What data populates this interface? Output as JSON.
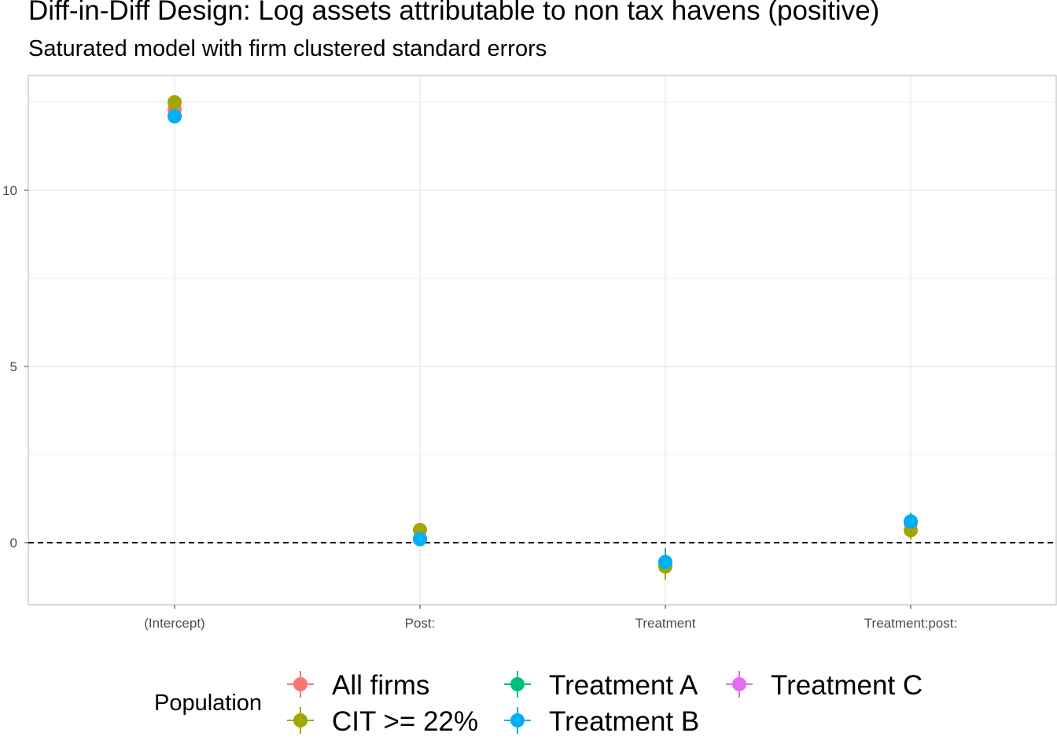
{
  "chart_data": {
    "type": "scatter",
    "title": "Diff-in-Diff Design: Log assets attributable to non tax havens (positive)",
    "subtitle": "Saturated model with firm clustered standard errors",
    "xlabel": "",
    "ylabel": "",
    "categories": [
      "(Intercept)",
      "Post:",
      "Treatment",
      "Treatment:post:"
    ],
    "ylim": [
      -1.75,
      13.0
    ],
    "yticks": [
      0,
      5,
      10
    ],
    "grid": true,
    "reference_line": {
      "y": 0,
      "style": "dashed"
    },
    "legend": {
      "title": "Population",
      "position": "bottom"
    },
    "series": [
      {
        "name": "All firms",
        "color": "#F8766D",
        "values": [
          12.3,
          0.12,
          -0.62,
          0.55
        ],
        "ci_low": [
          12.2,
          0.05,
          -0.85,
          0.35
        ],
        "ci_high": [
          12.4,
          0.19,
          -0.39,
          0.75
        ]
      },
      {
        "name": "Treatment A",
        "color": "#00BF7D",
        "values": [
          12.1,
          0.1,
          -0.55,
          0.6
        ],
        "ci_low": [
          12.0,
          0.02,
          -0.95,
          0.35
        ],
        "ci_high": [
          12.2,
          0.18,
          -0.15,
          0.85
        ]
      },
      {
        "name": "Treatment C",
        "color": "#E76BF3",
        "values": [
          12.1,
          0.12,
          -0.62,
          0.58
        ],
        "ci_low": [
          12.0,
          0.05,
          -0.85,
          0.38
        ],
        "ci_high": [
          12.2,
          0.19,
          -0.39,
          0.78
        ]
      },
      {
        "name": "CIT >= 22%",
        "color": "#A3A500",
        "values": [
          12.5,
          0.36,
          -0.68,
          0.35
        ],
        "ci_low": [
          12.4,
          0.28,
          -1.05,
          0.1
        ],
        "ci_high": [
          12.6,
          0.44,
          -0.31,
          0.6
        ]
      },
      {
        "name": "Treatment B",
        "color": "#00B0F6",
        "values": [
          12.1,
          0.1,
          -0.55,
          0.6
        ],
        "ci_low": [
          12.0,
          0.02,
          -0.75,
          0.4
        ],
        "ci_high": [
          12.2,
          0.18,
          -0.35,
          0.8
        ]
      }
    ]
  }
}
